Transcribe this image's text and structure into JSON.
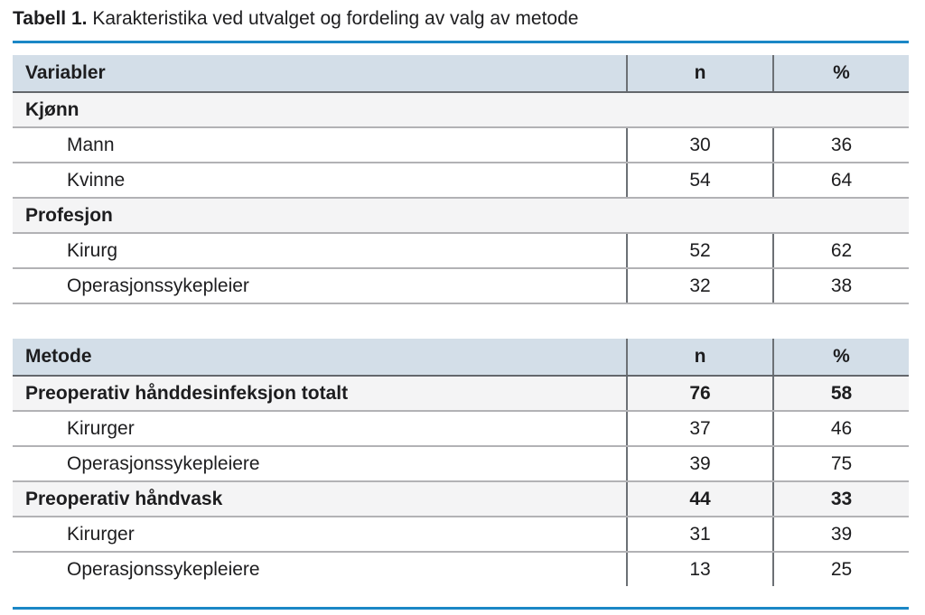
{
  "caption": {
    "label": "Tabell 1.",
    "text": " Karakteristika ved utvalget og fordeling av valg av metode"
  },
  "colors": {
    "accent_blue": "#1b87c6",
    "header_bg": "#d3dee8",
    "section_row_bg": "#f4f4f5",
    "row_divider": "#b2b2b5",
    "column_divider": "#6c7075"
  },
  "chart_data": {
    "type": "table",
    "tables": [
      {
        "headers": [
          "Variabler",
          "n",
          "%"
        ],
        "rows": [
          {
            "kind": "section",
            "label": "Kjønn",
            "n": "",
            "pct": ""
          },
          {
            "kind": "data",
            "label": "Mann",
            "n": "30",
            "pct": "36"
          },
          {
            "kind": "data",
            "label": "Kvinne",
            "n": "54",
            "pct": "64"
          },
          {
            "kind": "section",
            "label": "Profesjon",
            "n": "",
            "pct": ""
          },
          {
            "kind": "data",
            "label": "Kirurg",
            "n": "52",
            "pct": "62"
          },
          {
            "kind": "data",
            "label": "Operasjonssykepleier",
            "n": "32",
            "pct": "38"
          }
        ]
      },
      {
        "headers": [
          "Metode",
          "n",
          "%"
        ],
        "rows": [
          {
            "kind": "total",
            "label": "Preoperativ hånddesinfeksjon totalt",
            "n": "76",
            "pct": "58"
          },
          {
            "kind": "data",
            "label": "Kirurger",
            "n": "37",
            "pct": "46"
          },
          {
            "kind": "data",
            "label": "Operasjonssykepleiere",
            "n": "39",
            "pct": "75"
          },
          {
            "kind": "total",
            "label": "Preoperativ håndvask",
            "n": "44",
            "pct": "33"
          },
          {
            "kind": "data",
            "label": "Kirurger",
            "n": "31",
            "pct": "39"
          },
          {
            "kind": "data",
            "label": "Operasjonssykepleiere",
            "n": "13",
            "pct": "25"
          }
        ]
      }
    ]
  }
}
